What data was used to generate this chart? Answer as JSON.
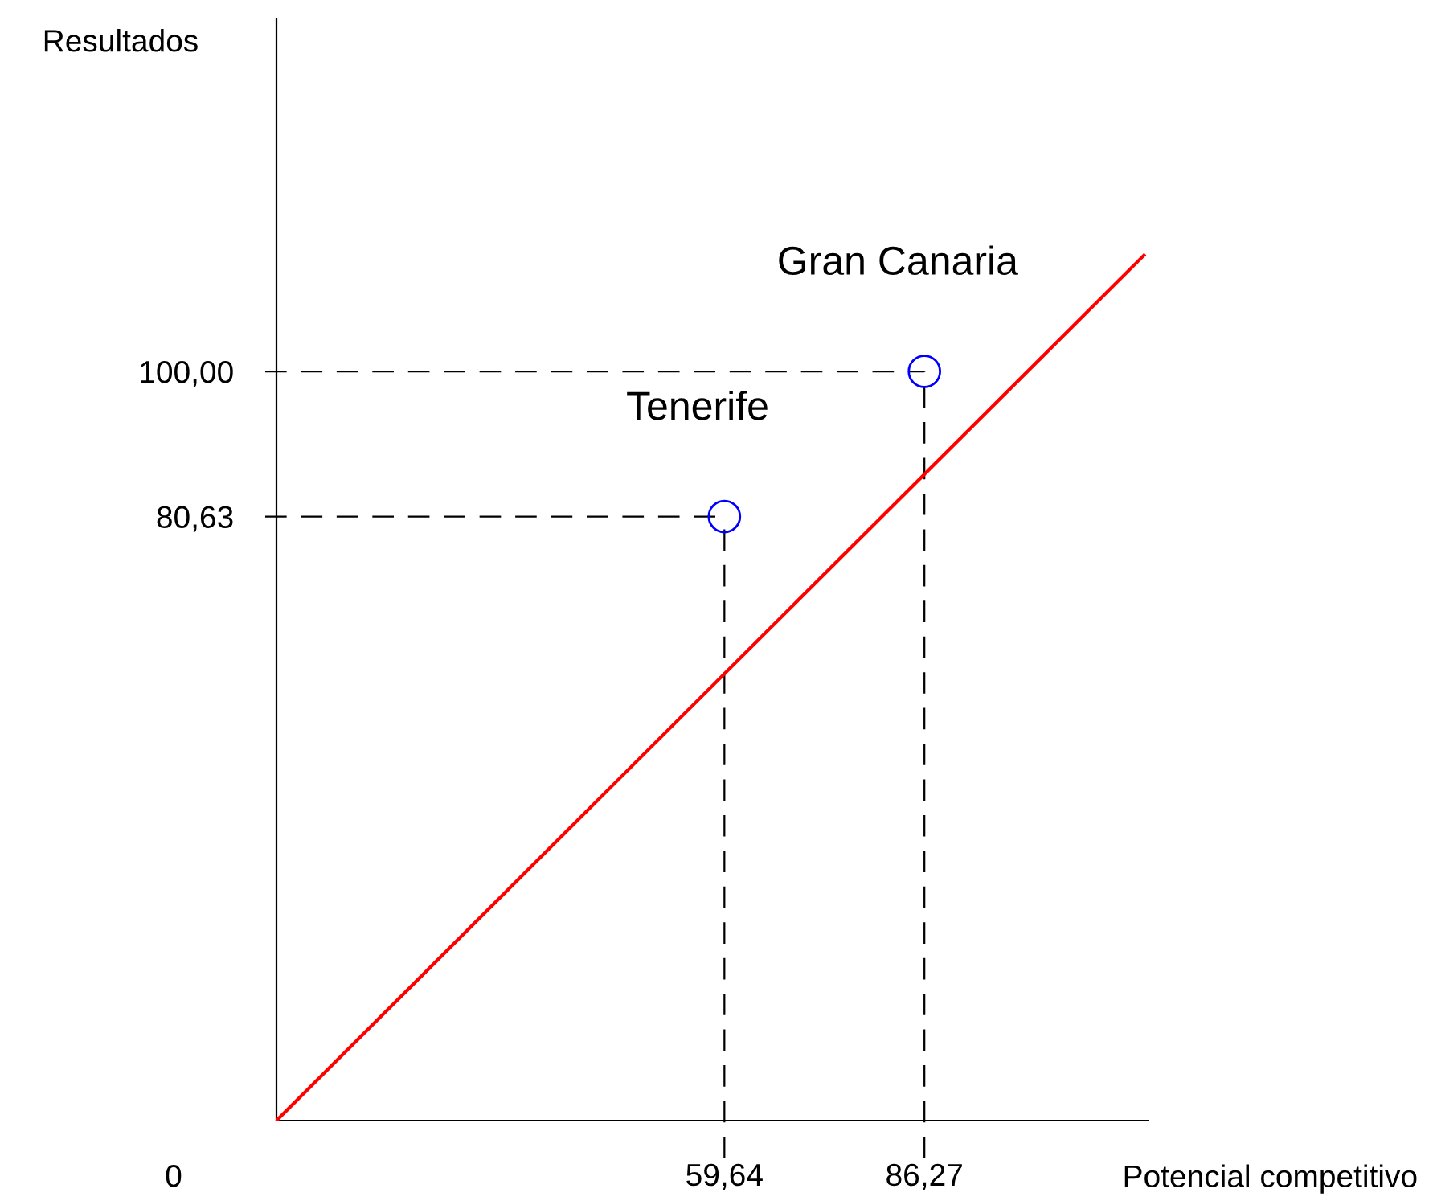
{
  "chart_data": {
    "type": "scatter",
    "xlabel": "Potencial competitivo",
    "ylabel": "Resultados",
    "xlim": [
      0,
      116
    ],
    "ylim": [
      0,
      147
    ],
    "xticks": [
      {
        "value": 59.64,
        "label": "59,64"
      },
      {
        "value": 86.27,
        "label": "86,27"
      }
    ],
    "yticks": [
      {
        "value": 80.63,
        "label": "80,63"
      },
      {
        "value": 100,
        "label": "100,00"
      }
    ],
    "series": [
      {
        "color": "#0000ff",
        "marker": "circle",
        "x": [
          59.64,
          86.27
        ],
        "values": [
          80.63,
          100
        ]
      },
      {
        "type": "line",
        "color": "#ff0000",
        "marker": "none",
        "line_style": "solid",
        "x": [
          0,
          115.5
        ],
        "values": [
          0,
          115.5
        ]
      }
    ],
    "ref_lines": [
      {
        "axis": "x",
        "value": 59.64,
        "color": "#000000",
        "line_style": "dashed"
      },
      {
        "axis": "x",
        "value": 86.27,
        "color": "#000000",
        "line_style": "dashed"
      },
      {
        "axis": "y",
        "value": 80.63,
        "color": "#000000",
        "line_style": "dashed"
      },
      {
        "axis": "y",
        "value": 100,
        "color": "#000000",
        "line_style": "dashed"
      }
    ],
    "annotations": [
      {
        "text": "Tenerife",
        "x": 59.64,
        "y": 80.63
      },
      {
        "text": "Gran Canaria",
        "x": 86.27,
        "y": 100
      },
      "0"
    ],
    "grid": false
  }
}
